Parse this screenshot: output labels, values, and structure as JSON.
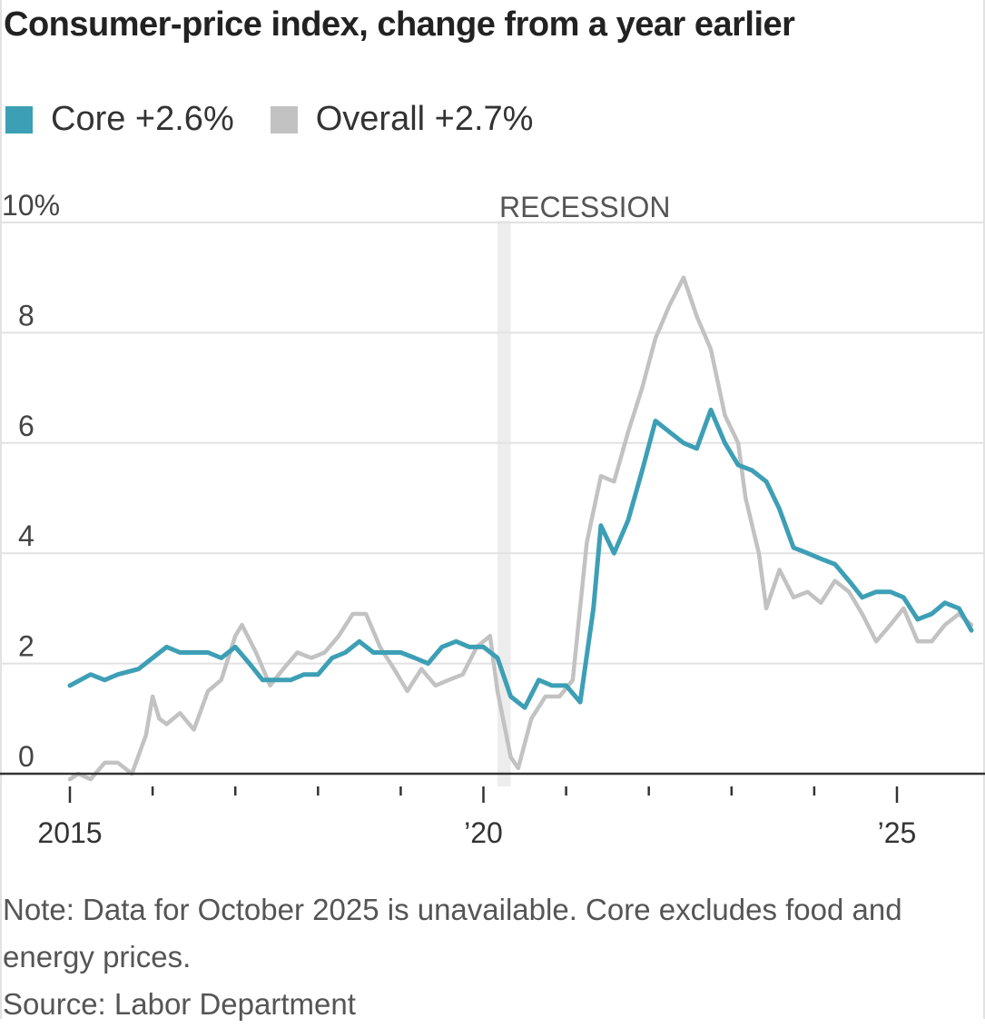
{
  "title": "Consumer-price index, change from a year earlier",
  "legend": [
    {
      "label": "Core +2.6%",
      "color": "#3d9fb5"
    },
    {
      "label": "Overall +2.7%",
      "color": "#c2c2c2"
    }
  ],
  "note": "Note: Data for October 2025 is unavailable. Core excludes food and energy prices.",
  "source": "Source: Labor Department",
  "chart_data": {
    "type": "line",
    "ylim": [
      0,
      10
    ],
    "yticks": [
      {
        "value": 10,
        "label": "10%"
      },
      {
        "value": 8,
        "label": "8"
      },
      {
        "value": 6,
        "label": "6"
      },
      {
        "value": 4,
        "label": "4"
      },
      {
        "value": 2,
        "label": "2"
      },
      {
        "value": 0,
        "label": "0"
      }
    ],
    "xlim": [
      2015.0,
      2025.9
    ],
    "xticks": [
      2015,
      2016,
      2017,
      2018,
      2019,
      2020,
      2021,
      2022,
      2023,
      2024,
      2025
    ],
    "xtick_labels": [
      {
        "value": 2015,
        "label": "2015"
      },
      {
        "value": 2020,
        "label": "’20"
      },
      {
        "value": 2025,
        "label": "’25"
      }
    ],
    "recession": {
      "label": "RECESSION",
      "start": 2020.17,
      "end": 2020.33
    },
    "series": [
      {
        "name": "Overall",
        "color": "#c2c2c2",
        "points": [
          [
            2015.0,
            -0.1
          ],
          [
            2015.1,
            0.0
          ],
          [
            2015.25,
            -0.1
          ],
          [
            2015.42,
            0.2
          ],
          [
            2015.58,
            0.2
          ],
          [
            2015.75,
            0.0
          ],
          [
            2015.92,
            0.7
          ],
          [
            2016.0,
            1.4
          ],
          [
            2016.08,
            1.0
          ],
          [
            2016.17,
            0.9
          ],
          [
            2016.33,
            1.1
          ],
          [
            2016.5,
            0.8
          ],
          [
            2016.67,
            1.5
          ],
          [
            2016.83,
            1.7
          ],
          [
            2017.0,
            2.5
          ],
          [
            2017.08,
            2.7
          ],
          [
            2017.25,
            2.2
          ],
          [
            2017.42,
            1.6
          ],
          [
            2017.58,
            1.9
          ],
          [
            2017.75,
            2.2
          ],
          [
            2017.92,
            2.1
          ],
          [
            2018.08,
            2.2
          ],
          [
            2018.25,
            2.5
          ],
          [
            2018.42,
            2.9
          ],
          [
            2018.58,
            2.9
          ],
          [
            2018.75,
            2.3
          ],
          [
            2018.92,
            1.9
          ],
          [
            2019.08,
            1.5
          ],
          [
            2019.25,
            1.9
          ],
          [
            2019.42,
            1.6
          ],
          [
            2019.58,
            1.7
          ],
          [
            2019.75,
            1.8
          ],
          [
            2019.92,
            2.3
          ],
          [
            2020.08,
            2.5
          ],
          [
            2020.17,
            1.5
          ],
          [
            2020.33,
            0.3
          ],
          [
            2020.42,
            0.1
          ],
          [
            2020.58,
            1.0
          ],
          [
            2020.75,
            1.4
          ],
          [
            2020.92,
            1.4
          ],
          [
            2021.08,
            1.7
          ],
          [
            2021.25,
            4.2
          ],
          [
            2021.42,
            5.4
          ],
          [
            2021.58,
            5.3
          ],
          [
            2021.75,
            6.2
          ],
          [
            2021.92,
            7.0
          ],
          [
            2022.08,
            7.9
          ],
          [
            2022.25,
            8.5
          ],
          [
            2022.42,
            9.0
          ],
          [
            2022.58,
            8.3
          ],
          [
            2022.75,
            7.7
          ],
          [
            2022.92,
            6.5
          ],
          [
            2023.08,
            6.0
          ],
          [
            2023.17,
            5.0
          ],
          [
            2023.33,
            4.0
          ],
          [
            2023.42,
            3.0
          ],
          [
            2023.58,
            3.7
          ],
          [
            2023.75,
            3.2
          ],
          [
            2023.92,
            3.3
          ],
          [
            2024.08,
            3.1
          ],
          [
            2024.25,
            3.5
          ],
          [
            2024.42,
            3.3
          ],
          [
            2024.58,
            2.9
          ],
          [
            2024.75,
            2.4
          ],
          [
            2024.92,
            2.7
          ],
          [
            2025.08,
            3.0
          ],
          [
            2025.25,
            2.4
          ],
          [
            2025.42,
            2.4
          ],
          [
            2025.58,
            2.7
          ],
          [
            2025.75,
            2.9
          ],
          [
            2025.9,
            2.7
          ]
        ]
      },
      {
        "name": "Core",
        "color": "#3d9fb5",
        "points": [
          [
            2015.0,
            1.6
          ],
          [
            2015.25,
            1.8
          ],
          [
            2015.42,
            1.7
          ],
          [
            2015.58,
            1.8
          ],
          [
            2015.83,
            1.9
          ],
          [
            2016.0,
            2.1
          ],
          [
            2016.17,
            2.3
          ],
          [
            2016.33,
            2.2
          ],
          [
            2016.5,
            2.2
          ],
          [
            2016.67,
            2.2
          ],
          [
            2016.83,
            2.1
          ],
          [
            2017.0,
            2.3
          ],
          [
            2017.17,
            2.0
          ],
          [
            2017.33,
            1.7
          ],
          [
            2017.5,
            1.7
          ],
          [
            2017.67,
            1.7
          ],
          [
            2017.83,
            1.8
          ],
          [
            2018.0,
            1.8
          ],
          [
            2018.17,
            2.1
          ],
          [
            2018.33,
            2.2
          ],
          [
            2018.5,
            2.4
          ],
          [
            2018.67,
            2.2
          ],
          [
            2018.83,
            2.2
          ],
          [
            2019.0,
            2.2
          ],
          [
            2019.17,
            2.1
          ],
          [
            2019.33,
            2.0
          ],
          [
            2019.5,
            2.3
          ],
          [
            2019.67,
            2.4
          ],
          [
            2019.83,
            2.3
          ],
          [
            2020.0,
            2.3
          ],
          [
            2020.17,
            2.1
          ],
          [
            2020.33,
            1.4
          ],
          [
            2020.5,
            1.2
          ],
          [
            2020.67,
            1.7
          ],
          [
            2020.83,
            1.6
          ],
          [
            2021.0,
            1.6
          ],
          [
            2021.17,
            1.3
          ],
          [
            2021.33,
            3.0
          ],
          [
            2021.42,
            4.5
          ],
          [
            2021.58,
            4.0
          ],
          [
            2021.75,
            4.6
          ],
          [
            2021.92,
            5.5
          ],
          [
            2022.08,
            6.4
          ],
          [
            2022.25,
            6.2
          ],
          [
            2022.42,
            6.0
          ],
          [
            2022.58,
            5.9
          ],
          [
            2022.75,
            6.6
          ],
          [
            2022.92,
            6.0
          ],
          [
            2023.08,
            5.6
          ],
          [
            2023.25,
            5.5
          ],
          [
            2023.42,
            5.3
          ],
          [
            2023.58,
            4.8
          ],
          [
            2023.75,
            4.1
          ],
          [
            2023.92,
            4.0
          ],
          [
            2024.08,
            3.9
          ],
          [
            2024.25,
            3.8
          ],
          [
            2024.42,
            3.5
          ],
          [
            2024.58,
            3.2
          ],
          [
            2024.75,
            3.3
          ],
          [
            2024.92,
            3.3
          ],
          [
            2025.08,
            3.2
          ],
          [
            2025.25,
            2.8
          ],
          [
            2025.42,
            2.9
          ],
          [
            2025.58,
            3.1
          ],
          [
            2025.75,
            3.0
          ],
          [
            2025.9,
            2.6
          ]
        ]
      }
    ]
  }
}
